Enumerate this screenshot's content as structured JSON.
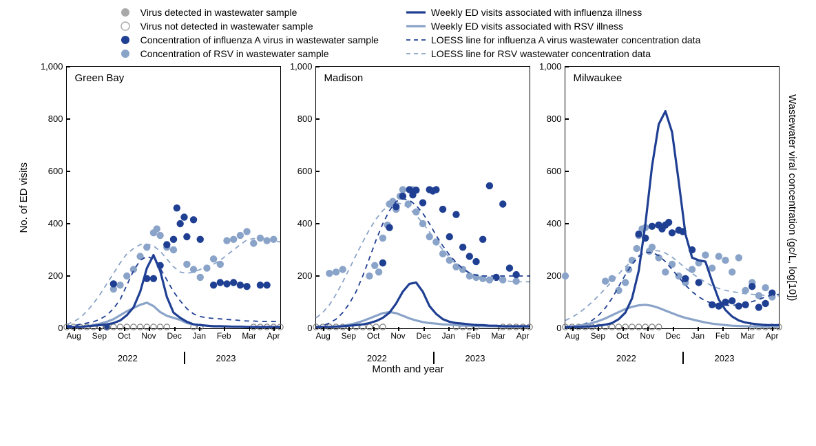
{
  "colors": {
    "gray": "#a9a9a9",
    "gray_stroke": "#808080",
    "navy": "#1f3f93",
    "steel": "#8aa3c8",
    "axis": "#000000",
    "background": "#ffffff"
  },
  "typography": {
    "font_family": "Arial, Helvetica, sans-serif",
    "label_fontsize": 15,
    "tick_fontsize": 13,
    "legend_fontsize": 14,
    "panel_title_fontsize": 15
  },
  "legend": {
    "left": [
      {
        "type": "filled-circle",
        "color": "#a9a9a9",
        "label": "Virus detected in wastewater sample"
      },
      {
        "type": "open-circle",
        "color": "#a9a9a9",
        "label": "Virus not detected in wastewater sample"
      },
      {
        "type": "filled-circle",
        "color": "#1f3f93",
        "label": "Concentration of influenza A virus in wastewater sample"
      },
      {
        "type": "filled-circle",
        "color": "#8aa3c8",
        "label": "Concentration of RSV in wastewater sample"
      }
    ],
    "right": [
      {
        "type": "solid-line",
        "color": "#1f3f93",
        "label": "Weekly ED visits associated with influenza illness"
      },
      {
        "type": "solid-line",
        "color": "#8aa3c8",
        "label": "Weekly ED visits associated with RSV illness"
      },
      {
        "type": "dashed-line",
        "color": "#1f3f93",
        "label": "LOESS line for influenza A virus wastewater concentration data"
      },
      {
        "type": "dashed-line",
        "color": "#8aa3c8",
        "label": "LOESS line for RSV wastewater concentration data"
      }
    ]
  },
  "axes": {
    "y_label_left": "No. of ED visits",
    "y_label_right": "Wastewater viral concentration (gc/L, log[10])",
    "x_label": "Month and year",
    "y_min": 0,
    "y_max": 1000,
    "y_tick_step": 200,
    "y_ticks": [
      "1,000",
      "800",
      "600",
      "400",
      "200",
      "0"
    ],
    "x_ticks": [
      "Aug",
      "Sep",
      "Oct",
      "Nov",
      "Dec",
      "Jan",
      "Feb",
      "Mar",
      "Apr"
    ],
    "year_left": "2022",
    "year_right": "2023"
  },
  "line_style": {
    "solid_width": 3.2,
    "dash_width": 1.8,
    "dash_pattern": "7,6",
    "marker_radius": 5.2,
    "open_marker_stroke": 1.2
  },
  "panels": [
    {
      "title": "Green Bay",
      "ed_flu": [
        5,
        5,
        5,
        8,
        10,
        12,
        15,
        20,
        30,
        50,
        80,
        140,
        230,
        280,
        220,
        120,
        60,
        40,
        25,
        15,
        12,
        10,
        8,
        8,
        7,
        6,
        6,
        5,
        5,
        5,
        5,
        5,
        5
      ],
      "ed_rsv": [
        5,
        5,
        5,
        8,
        12,
        18,
        25,
        35,
        50,
        65,
        78,
        90,
        98,
        85,
        62,
        48,
        40,
        32,
        20,
        15,
        12,
        10,
        8,
        8,
        7,
        6,
        6,
        5,
        5,
        5,
        5,
        5,
        5
      ],
      "loess_flu": [
        10,
        10,
        15,
        20,
        25,
        35,
        50,
        75,
        110,
        165,
        220,
        260,
        275,
        265,
        230,
        185,
        140,
        105,
        75,
        55,
        45,
        40,
        38,
        36,
        34,
        32,
        30,
        28,
        28,
        26,
        26,
        26,
        26
      ],
      "loess_rsv": [
        15,
        25,
        40,
        65,
        95,
        130,
        170,
        210,
        250,
        285,
        305,
        320,
        322,
        315,
        295,
        265,
        235,
        215,
        210,
        215,
        225,
        235,
        245,
        260,
        280,
        300,
        320,
        338,
        343,
        343,
        340,
        335,
        330
      ],
      "scatter_flu": [
        [
          6,
          5
        ],
        [
          7,
          170
        ],
        [
          12,
          190
        ],
        [
          13,
          190
        ],
        [
          14,
          240
        ],
        [
          15,
          320
        ],
        [
          16,
          340
        ],
        [
          16.5,
          460
        ],
        [
          17,
          400
        ],
        [
          17.6,
          425
        ],
        [
          18,
          350
        ],
        [
          19,
          415
        ],
        [
          20,
          340
        ],
        [
          22,
          165
        ],
        [
          23,
          175
        ],
        [
          24,
          170
        ],
        [
          25,
          175
        ],
        [
          26,
          165
        ],
        [
          27,
          160
        ],
        [
          29,
          165
        ],
        [
          30,
          165
        ]
      ],
      "scatter_rsv": [
        [
          7,
          150
        ],
        [
          8,
          165
        ],
        [
          9,
          200
        ],
        [
          10,
          225
        ],
        [
          11,
          275
        ],
        [
          12,
          310
        ],
        [
          13,
          365
        ],
        [
          13.5,
          380
        ],
        [
          14,
          355
        ],
        [
          15,
          310
        ],
        [
          16,
          300
        ],
        [
          18,
          245
        ],
        [
          19,
          225
        ],
        [
          20,
          195
        ],
        [
          21,
          230
        ],
        [
          22,
          265
        ],
        [
          23,
          245
        ],
        [
          24,
          335
        ],
        [
          25,
          340
        ],
        [
          26,
          355
        ],
        [
          27,
          370
        ],
        [
          28,
          325
        ],
        [
          29,
          345
        ],
        [
          30,
          335
        ],
        [
          31,
          340
        ]
      ],
      "scatter_open": [
        [
          0,
          5
        ],
        [
          1,
          5
        ],
        [
          2,
          5
        ],
        [
          3,
          5
        ],
        [
          4,
          5
        ],
        [
          5,
          5
        ],
        [
          6,
          5
        ],
        [
          7,
          5
        ],
        [
          8,
          5
        ],
        [
          9,
          5
        ],
        [
          10,
          5
        ],
        [
          11,
          5
        ],
        [
          12,
          5
        ],
        [
          13,
          5
        ],
        [
          14,
          5
        ],
        [
          15,
          5
        ],
        [
          19,
          5
        ],
        [
          20,
          5
        ],
        [
          28,
          5
        ],
        [
          29,
          5
        ],
        [
          30,
          5
        ],
        [
          31,
          5
        ],
        [
          32,
          5
        ]
      ]
    },
    {
      "title": "Madison",
      "ed_flu": [
        5,
        5,
        5,
        6,
        8,
        10,
        12,
        15,
        20,
        28,
        40,
        60,
        95,
        140,
        170,
        175,
        140,
        85,
        55,
        35,
        25,
        20,
        18,
        15,
        12,
        12,
        10,
        10,
        8,
        8,
        8,
        8,
        8
      ],
      "ed_rsv": [
        5,
        5,
        5,
        7,
        10,
        14,
        20,
        28,
        38,
        48,
        58,
        62,
        58,
        48,
        38,
        30,
        24,
        20,
        18,
        15,
        14,
        12,
        10,
        10,
        9,
        8,
        8,
        7,
        7,
        6,
        6,
        6,
        6
      ],
      "loess_flu": [
        5,
        10,
        20,
        35,
        60,
        95,
        140,
        200,
        268,
        338,
        400,
        450,
        485,
        495,
        490,
        470,
        440,
        400,
        355,
        315,
        280,
        252,
        228,
        212,
        203,
        200,
        200,
        200,
        200,
        200,
        200,
        200,
        200
      ],
      "loess_rsv": [
        40,
        60,
        90,
        130,
        178,
        228,
        280,
        330,
        378,
        418,
        450,
        472,
        480,
        475,
        458,
        432,
        402,
        368,
        332,
        300,
        270,
        245,
        225,
        210,
        198,
        192,
        188,
        185,
        182,
        180,
        178,
        178,
        178
      ],
      "scatter_flu": [
        [
          10,
          250
        ],
        [
          11,
          385
        ],
        [
          12,
          465
        ],
        [
          13,
          505
        ],
        [
          14,
          530
        ],
        [
          14.5,
          510
        ],
        [
          15,
          528
        ],
        [
          16,
          480
        ],
        [
          17,
          530
        ],
        [
          17.5,
          525
        ],
        [
          18,
          530
        ],
        [
          19,
          455
        ],
        [
          20,
          350
        ],
        [
          21,
          435
        ],
        [
          22,
          310
        ],
        [
          23,
          275
        ],
        [
          24,
          255
        ],
        [
          25,
          340
        ],
        [
          26,
          545
        ],
        [
          27,
          195
        ],
        [
          28,
          475
        ],
        [
          29,
          230
        ],
        [
          30,
          205
        ]
      ],
      "scatter_rsv": [
        [
          2,
          210
        ],
        [
          3,
          215
        ],
        [
          4,
          225
        ],
        [
          8,
          200
        ],
        [
          8.8,
          240
        ],
        [
          9.4,
          215
        ],
        [
          10,
          345
        ],
        [
          10.7,
          395
        ],
        [
          11,
          475
        ],
        [
          11.5,
          485
        ],
        [
          12,
          455
        ],
        [
          12.6,
          505
        ],
        [
          13,
          530
        ],
        [
          13.8,
          475
        ],
        [
          14.5,
          530
        ],
        [
          15,
          445
        ],
        [
          16,
          400
        ],
        [
          17,
          350
        ],
        [
          18,
          330
        ],
        [
          19,
          285
        ],
        [
          20,
          260
        ],
        [
          21,
          235
        ],
        [
          22,
          225
        ],
        [
          23,
          200
        ],
        [
          24,
          195
        ],
        [
          25,
          190
        ],
        [
          26,
          185
        ],
        [
          28,
          185
        ],
        [
          30,
          180
        ]
      ],
      "scatter_open": [
        [
          0,
          5
        ],
        [
          1,
          5
        ],
        [
          2,
          5
        ],
        [
          3,
          5
        ],
        [
          4,
          5
        ],
        [
          5,
          5
        ],
        [
          6,
          5
        ],
        [
          7,
          5
        ],
        [
          8,
          5
        ],
        [
          9,
          5
        ],
        [
          10,
          5
        ],
        [
          21,
          5
        ],
        [
          22,
          5
        ],
        [
          23,
          5
        ],
        [
          24,
          5
        ],
        [
          28,
          5
        ],
        [
          29,
          5
        ],
        [
          30,
          5
        ],
        [
          31,
          5
        ],
        [
          32,
          5
        ]
      ]
    },
    {
      "title": "Milwaukee",
      "ed_flu": [
        5,
        5,
        5,
        6,
        8,
        10,
        14,
        20,
        35,
        60,
        115,
        220,
        400,
        620,
        780,
        830,
        750,
        560,
        360,
        270,
        260,
        255,
        180,
        110,
        70,
        45,
        30,
        22,
        18,
        15,
        12,
        12,
        12
      ],
      "ed_rsv": [
        5,
        7,
        10,
        14,
        20,
        28,
        38,
        50,
        62,
        74,
        82,
        88,
        90,
        86,
        78,
        68,
        58,
        48,
        40,
        34,
        28,
        22,
        18,
        15,
        12,
        10,
        9,
        8,
        7,
        7,
        6,
        6,
        6
      ],
      "loess_flu": [
        0,
        5,
        10,
        18,
        30,
        50,
        78,
        115,
        160,
        205,
        245,
        275,
        290,
        290,
        278,
        255,
        225,
        195,
        165,
        140,
        120,
        105,
        95,
        90,
        88,
        88,
        90,
        95,
        102,
        110,
        120,
        128,
        130
      ],
      "loess_rsv": [
        30,
        42,
        58,
        78,
        100,
        125,
        152,
        180,
        208,
        235,
        258,
        278,
        292,
        298,
        296,
        288,
        272,
        252,
        230,
        210,
        192,
        176,
        162,
        152,
        145,
        140,
        136,
        132,
        130,
        128,
        126,
        124,
        124
      ],
      "scatter_flu": [
        [
          11,
          360
        ],
        [
          12,
          345
        ],
        [
          13,
          390
        ],
        [
          14,
          395
        ],
        [
          14.5,
          380
        ],
        [
          15,
          395
        ],
        [
          15.5,
          405
        ],
        [
          16,
          365
        ],
        [
          17,
          375
        ],
        [
          17.6,
          370
        ],
        [
          18,
          190
        ],
        [
          19,
          300
        ],
        [
          20,
          175
        ],
        [
          22,
          90
        ],
        [
          23,
          85
        ],
        [
          24,
          100
        ],
        [
          25,
          105
        ],
        [
          26,
          85
        ],
        [
          27,
          90
        ],
        [
          28,
          160
        ],
        [
          29,
          80
        ],
        [
          30,
          95
        ],
        [
          31,
          135
        ]
      ],
      "scatter_rsv": [
        [
          0,
          200
        ],
        [
          6,
          180
        ],
        [
          7,
          190
        ],
        [
          8,
          145
        ],
        [
          9,
          175
        ],
        [
          9.5,
          225
        ],
        [
          10,
          260
        ],
        [
          10.7,
          305
        ],
        [
          11,
          355
        ],
        [
          11.5,
          380
        ],
        [
          12,
          385
        ],
        [
          12.6,
          295
        ],
        [
          13,
          310
        ],
        [
          14,
          270
        ],
        [
          15,
          215
        ],
        [
          16,
          245
        ],
        [
          17,
          200
        ],
        [
          18,
          175
        ],
        [
          19,
          225
        ],
        [
          20,
          250
        ],
        [
          21,
          280
        ],
        [
          22,
          230
        ],
        [
          23,
          275
        ],
        [
          24,
          260
        ],
        [
          25,
          215
        ],
        [
          26,
          270
        ],
        [
          27,
          145
        ],
        [
          28,
          175
        ],
        [
          29,
          125
        ],
        [
          30,
          155
        ],
        [
          31,
          120
        ]
      ],
      "scatter_open": [
        [
          0,
          5
        ],
        [
          1,
          5
        ],
        [
          2,
          5
        ],
        [
          3,
          5
        ],
        [
          4,
          5
        ],
        [
          5,
          5
        ],
        [
          6,
          5
        ],
        [
          7,
          5
        ],
        [
          8,
          5
        ],
        [
          9,
          5
        ],
        [
          10,
          5
        ],
        [
          11,
          5
        ],
        [
          12,
          5
        ],
        [
          13,
          5
        ],
        [
          14,
          5
        ],
        [
          28,
          5
        ],
        [
          29,
          5
        ],
        [
          30,
          5
        ],
        [
          31,
          5
        ],
        [
          32,
          5
        ]
      ]
    }
  ]
}
